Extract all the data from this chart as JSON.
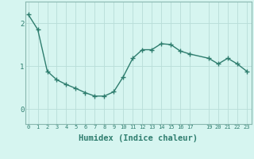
{
  "x": [
    0,
    1,
    2,
    3,
    4,
    5,
    6,
    7,
    8,
    9,
    10,
    11,
    12,
    13,
    14,
    15,
    16,
    17,
    19,
    20,
    21,
    22,
    23
  ],
  "y": [
    2.2,
    1.85,
    0.88,
    0.68,
    0.57,
    0.48,
    0.38,
    0.3,
    0.3,
    0.4,
    0.75,
    1.18,
    1.38,
    1.38,
    1.52,
    1.5,
    1.35,
    1.28,
    1.18,
    1.05,
    1.18,
    1.05,
    0.88
  ],
  "line_color": "#2e7d6e",
  "marker": "+",
  "marker_size": 4,
  "bg_color": "#d6f5f0",
  "grid_color": "#b8ddd8",
  "xlabel": "Humidex (Indice chaleur)",
  "xlabel_fontsize": 7.5,
  "ytick_labels": [
    "0",
    "1",
    "2"
  ],
  "ytick_vals": [
    0,
    1,
    2
  ],
  "xtick_vals": [
    0,
    1,
    2,
    3,
    4,
    5,
    6,
    7,
    8,
    9,
    10,
    11,
    12,
    13,
    14,
    15,
    16,
    17,
    19,
    20,
    21,
    22,
    23
  ],
  "xlim": [
    -0.3,
    23.5
  ],
  "ylim": [
    -0.35,
    2.5
  ],
  "spine_color": "#8ab8b0",
  "tick_color": "#2e7d6e"
}
